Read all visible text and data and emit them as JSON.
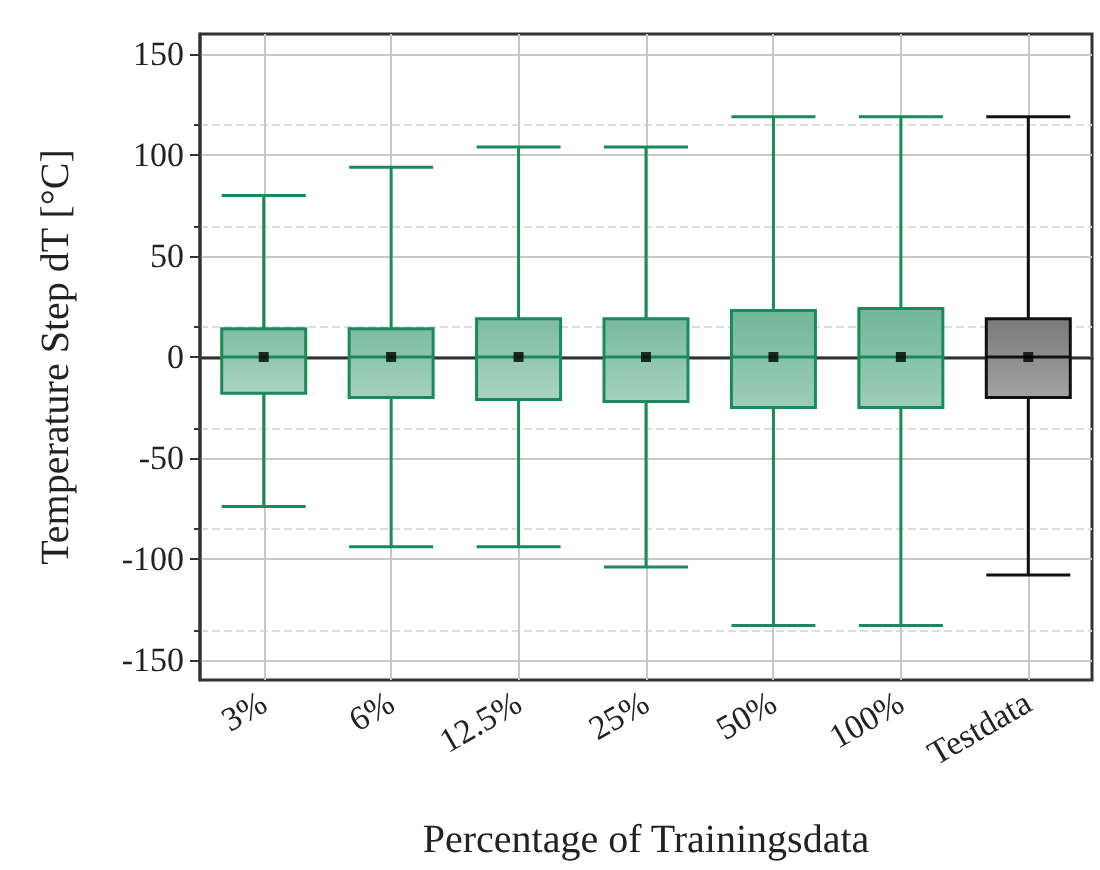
{
  "chart_data": {
    "type": "box",
    "xlabel": "Percentage of Trainingsdata",
    "ylabel": "Temperature Step dT [°C]",
    "categories": [
      "3%",
      "6%",
      "12.5%",
      "25%",
      "50%",
      "100%",
      "Testdata"
    ],
    "colors": [
      "#1a8a5a",
      "#1a8a5a",
      "#1a8a5a",
      "#1a8a5a",
      "#1a8a5a",
      "#1a8a5a",
      "#111111"
    ],
    "boxes": [
      {
        "low": -74,
        "q1": -18,
        "median": 0,
        "q3": 14,
        "high": 80,
        "mean": 0
      },
      {
        "low": -94,
        "q1": -20,
        "median": 0,
        "q3": 14,
        "high": 94,
        "mean": 0
      },
      {
        "low": -94,
        "q1": -21,
        "median": 0,
        "q3": 19,
        "high": 104,
        "mean": 0
      },
      {
        "low": -104,
        "q1": -22,
        "median": 0,
        "q3": 19,
        "high": 104,
        "mean": 0
      },
      {
        "low": -133,
        "q1": -25,
        "median": 0,
        "q3": 23,
        "high": 119,
        "mean": 0
      },
      {
        "low": -133,
        "q1": -25,
        "median": 0,
        "q3": 24,
        "high": 119,
        "mean": 0
      },
      {
        "low": -108,
        "q1": -20,
        "median": 0,
        "q3": 19,
        "high": 119,
        "mean": 0
      }
    ],
    "ylim": [
      -160,
      160
    ],
    "yticks": [
      -150,
      -100,
      -50,
      0,
      50,
      100,
      150
    ],
    "grid": true
  }
}
